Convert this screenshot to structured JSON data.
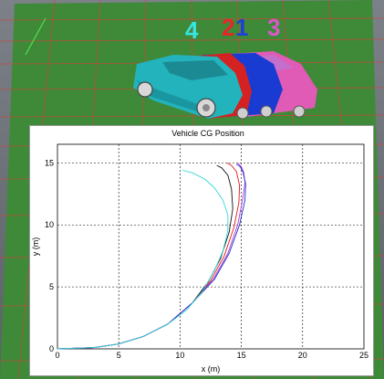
{
  "scene": {
    "car_labels": [
      {
        "text": "4",
        "color": "#33e6e0"
      },
      {
        "text": "2",
        "color": "#e8262a"
      },
      {
        "text": "1",
        "color": "#1f3fd6"
      },
      {
        "text": "3",
        "color": "#d957c8"
      }
    ],
    "car_colors": [
      "#22b3bc",
      "#d42222",
      "#1a3bd1",
      "#e05bb5"
    ],
    "ground_color": "#3f8a39",
    "grid_color": "#e04a3a"
  },
  "chart_data": {
    "type": "line",
    "title": "Vehicle CG Position",
    "xlabel": "x (m)",
    "ylabel": "y (m)",
    "xlim": [
      0,
      25
    ],
    "ylim": [
      0,
      16.5
    ],
    "xticks": [
      0,
      5,
      10,
      15,
      20,
      25
    ],
    "yticks": [
      0,
      5,
      10,
      15
    ],
    "grid": true,
    "series": [
      {
        "color": "#e01818",
        "x": [
          0,
          3,
          5,
          7,
          9,
          11,
          12.5,
          13.6,
          14.4,
          14.8,
          14.85,
          14.6,
          14.2,
          13.8
        ],
        "y": [
          0,
          0.1,
          0.4,
          1.0,
          2.0,
          3.7,
          5.5,
          7.5,
          9.8,
          11.8,
          13.2,
          14.3,
          14.8,
          15.0
        ]
      },
      {
        "color": "#111111",
        "x": [
          0,
          3,
          5,
          7,
          9,
          11,
          12.3,
          13.3,
          14.0,
          14.3,
          14.2,
          13.9,
          13.4,
          13.0
        ],
        "y": [
          0,
          0.1,
          0.4,
          1.0,
          2.0,
          3.7,
          5.4,
          7.3,
          9.4,
          11.3,
          12.9,
          14.0,
          14.6,
          14.8
        ]
      },
      {
        "color": "#b03cc8",
        "x": [
          0,
          3,
          5,
          7,
          9,
          11,
          12.7,
          13.9,
          14.7,
          15.1,
          15.3,
          15.2,
          15.0,
          14.7
        ],
        "y": [
          0,
          0.1,
          0.4,
          1.0,
          2.0,
          3.7,
          5.6,
          7.7,
          10.0,
          12.0,
          13.4,
          14.2,
          14.7,
          15.0
        ]
      },
      {
        "color": "#1c2fd0",
        "x": [
          0,
          3,
          5,
          7,
          9,
          11,
          12.8,
          14.0,
          14.85,
          15.3,
          15.35,
          15.15,
          14.9,
          14.6
        ],
        "y": [
          0,
          0.1,
          0.4,
          1.0,
          2.0,
          3.7,
          5.6,
          7.7,
          10.0,
          12.0,
          13.3,
          14.2,
          14.7,
          14.9
        ]
      },
      {
        "color": "#35d6d6",
        "x": [
          0,
          3,
          5,
          7,
          9,
          10.5,
          11.8,
          12.8,
          13.5,
          13.9,
          13.9,
          13.5,
          12.8,
          12.0,
          11.0,
          10.2
        ],
        "y": [
          0,
          0.1,
          0.4,
          1.0,
          2.0,
          3.1,
          4.6,
          6.3,
          7.9,
          9.5,
          10.8,
          12.0,
          13.0,
          13.7,
          14.2,
          14.4
        ]
      }
    ]
  }
}
